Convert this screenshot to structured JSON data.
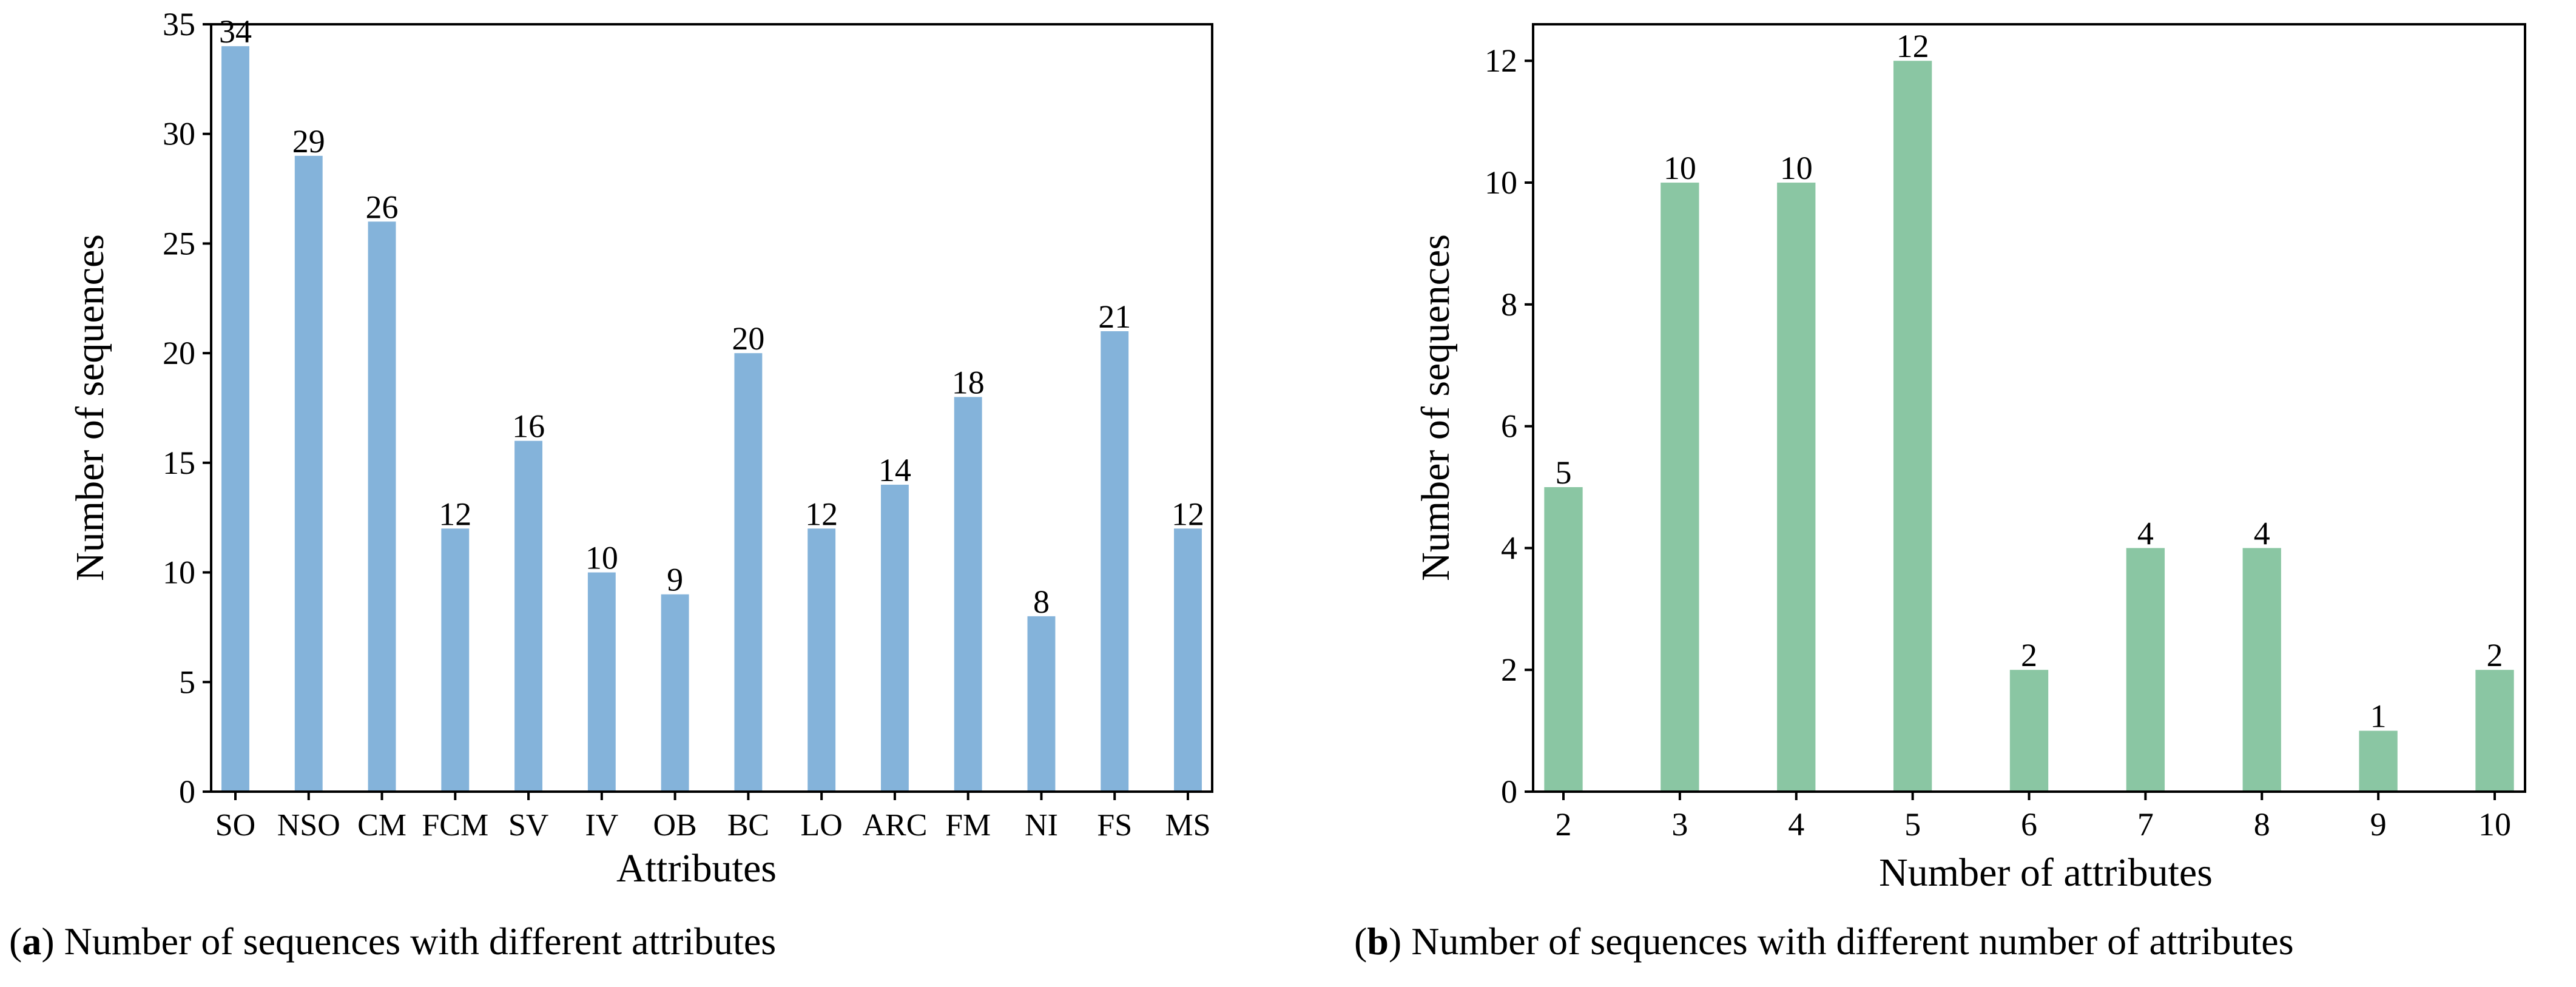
{
  "chart_data": [
    {
      "type": "bar",
      "title": "",
      "xlabel": "Attributes",
      "ylabel": "Number of sequences",
      "categories": [
        "SO",
        "NSO",
        "CM",
        "FCM",
        "SV",
        "IV",
        "OB",
        "BC",
        "LO",
        "ARC",
        "FM",
        "NI",
        "FS",
        "MS"
      ],
      "values": [
        34,
        29,
        26,
        12,
        16,
        10,
        9,
        20,
        12,
        14,
        18,
        8,
        21,
        12
      ],
      "ylim": [
        0,
        35
      ],
      "yticks": [
        0,
        5,
        10,
        15,
        20,
        25,
        30,
        35
      ],
      "color": "#84b3da",
      "grid": false
    },
    {
      "type": "bar",
      "title": "",
      "xlabel": "Number of attributes",
      "ylabel": "Number of sequences",
      "categories": [
        "2",
        "3",
        "4",
        "5",
        "6",
        "7",
        "8",
        "9",
        "10"
      ],
      "values": [
        5,
        10,
        10,
        12,
        2,
        4,
        4,
        1,
        2
      ],
      "ylim": [
        0,
        12.6
      ],
      "yticks": [
        0,
        2,
        4,
        6,
        8,
        10,
        12
      ],
      "color": "#8ac6a3",
      "grid": false
    }
  ],
  "captions": [
    {
      "tag": "a",
      "text": "Number of sequences with different attributes"
    },
    {
      "tag": "b",
      "text": "Number of sequences with different number of attributes"
    }
  ]
}
